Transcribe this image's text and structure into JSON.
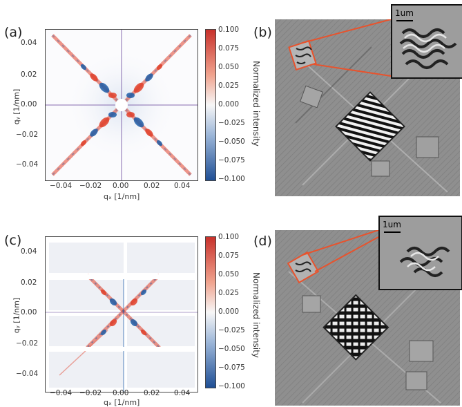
{
  "panels": {
    "a": {
      "letter": "(a)"
    },
    "b": {
      "letter": "(b)",
      "inset_scale": "1um"
    },
    "c": {
      "letter": "(c)"
    },
    "d": {
      "letter": "(d)",
      "inset_scale": "1um"
    }
  },
  "axes": {
    "x_label": "qₓ [1/nm]",
    "y_label": "qᵧ [1/nm]",
    "x_ticks": [
      "−0.04",
      "−0.02",
      "0.00",
      "0.02",
      "0.04"
    ],
    "y_ticks": [
      "0.04",
      "0.02",
      "0.00",
      "−0.02",
      "−0.04"
    ]
  },
  "colorbar": {
    "title": "Normalized intensity",
    "ticks": [
      "0.100",
      "0.075",
      "0.050",
      "0.025",
      "0.000",
      "−0.025",
      "−0.050",
      "−0.075",
      "−0.100"
    ],
    "range": [
      -0.1,
      0.1
    ],
    "colors": {
      "high": "#e2412b",
      "mid": "#f7f7f7",
      "low": "#1f5ea8"
    }
  },
  "colors": {
    "highlight": "#e8532d",
    "frame": "#222222"
  }
}
